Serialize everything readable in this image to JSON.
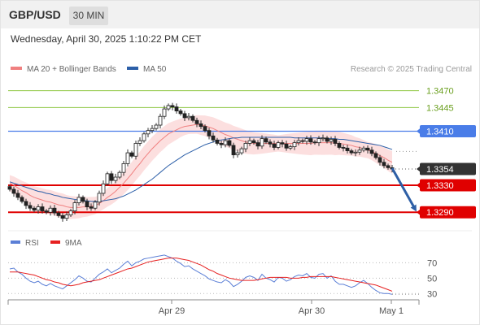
{
  "header": {
    "pair": "GBP/USD",
    "timeframe": "30 MIN",
    "datetime": "Wednesday, April 30, 2025 1:10:22 PM CET"
  },
  "legend": {
    "items": [
      {
        "label": "MA 20 + Bollinger Bands",
        "color": "#f08080"
      },
      {
        "label": "MA 50",
        "color": "#2c5fa8"
      }
    ],
    "research": "Research © 2025 Trading Central"
  },
  "rsi_legend": {
    "items": [
      {
        "label": "RSI",
        "color": "#5b7fd6"
      },
      {
        "label": "9MA",
        "color": "#e62020"
      }
    ]
  },
  "colors": {
    "resistance_green": "#8dc63f",
    "pivot_blue": "#4a7de8",
    "support_red": "#e00000",
    "last_price_bg": "#333333",
    "arrow": "#2e5fa6",
    "bollinger_fill": "#fcd9d9"
  },
  "chart_data": [
    {
      "type": "candlestick",
      "title": "GBP/USD",
      "x_ticks": [
        "Apr 29",
        "Apr 30",
        "May 1"
      ],
      "ylim": [
        1.3265,
        1.349
      ],
      "levels": [
        {
          "label": "1.3470",
          "value": 1.347,
          "kind": "resistance"
        },
        {
          "label": "1.3445",
          "value": 1.3445,
          "kind": "resistance"
        },
        {
          "label": "1.3410",
          "value": 1.341,
          "kind": "pivot"
        },
        {
          "label": "1.3354",
          "value": 1.3354,
          "kind": "last"
        },
        {
          "label": "1.3330",
          "value": 1.333,
          "kind": "support"
        },
        {
          "label": "1.3290",
          "value": 1.329,
          "kind": "support"
        }
      ],
      "close": [
        1.3324,
        1.3318,
        1.3312,
        1.3306,
        1.33,
        1.3296,
        1.3293,
        1.3298,
        1.3292,
        1.329,
        1.3296,
        1.3289,
        1.3285,
        1.3281,
        1.3286,
        1.3292,
        1.3304,
        1.3312,
        1.3306,
        1.3298,
        1.3296,
        1.3305,
        1.3318,
        1.3332,
        1.3347,
        1.3337,
        1.3342,
        1.3349,
        1.3362,
        1.3378,
        1.3373,
        1.3392,
        1.3396,
        1.3406,
        1.3411,
        1.3414,
        1.3419,
        1.3432,
        1.3443,
        1.3448,
        1.3446,
        1.344,
        1.3436,
        1.343,
        1.3432,
        1.3426,
        1.3421,
        1.3417,
        1.3411,
        1.3403,
        1.3397,
        1.3392,
        1.339,
        1.3396,
        1.3389,
        1.3375,
        1.3378,
        1.3384,
        1.3392,
        1.3396,
        1.3393,
        1.3388,
        1.3399,
        1.3394,
        1.3391,
        1.3386,
        1.3393,
        1.3391,
        1.3385,
        1.3387,
        1.3393,
        1.3396,
        1.3395,
        1.3399,
        1.3394,
        1.3393,
        1.3399,
        1.34,
        1.3395,
        1.3398,
        1.3392,
        1.3386,
        1.3385,
        1.3381,
        1.3378,
        1.3379,
        1.3382,
        1.3385,
        1.3382,
        1.3377,
        1.3371,
        1.3364,
        1.3359,
        1.3356,
        1.3354
      ],
      "ma20": [
        1.3333,
        1.333,
        1.3326,
        1.3322,
        1.3319,
        1.3315,
        1.3312,
        1.331,
        1.3308,
        1.3306,
        1.3305,
        1.3303,
        1.3301,
        1.33,
        1.3298,
        1.3297,
        1.3297,
        1.3297,
        1.3298,
        1.3298,
        1.3299,
        1.33,
        1.3303,
        1.3307,
        1.3312,
        1.3316,
        1.3321,
        1.3327,
        1.3333,
        1.334,
        1.3347,
        1.3355,
        1.3362,
        1.337,
        1.3377,
        1.3384,
        1.339,
        1.3396,
        1.3401,
        1.3406,
        1.3409,
        1.3412,
        1.3415,
        1.3417,
        1.3418,
        1.3419,
        1.342,
        1.3419,
        1.3418,
        1.3416,
        1.3414,
        1.3411,
        1.3408,
        1.3405,
        1.3403,
        1.34,
        1.3398,
        1.3396,
        1.3394,
        1.3393,
        1.3392,
        1.3392,
        1.3392,
        1.3392,
        1.3392,
        1.3392,
        1.3392,
        1.3392,
        1.3392,
        1.3392,
        1.3392,
        1.3392,
        1.3392,
        1.3392,
        1.3392,
        1.3393,
        1.3393,
        1.3393,
        1.3393,
        1.3393,
        1.3392,
        1.3392,
        1.3391,
        1.339,
        1.3389,
        1.3387,
        1.3386,
        1.3384,
        1.3382,
        1.338,
        1.3377,
        1.3374,
        1.3371,
        1.3367,
        1.3364
      ],
      "ma50": [
        1.3335,
        1.3333,
        1.3331,
        1.3329,
        1.3327,
        1.3325,
        1.3323,
        1.3321,
        1.332,
        1.3318,
        1.3317,
        1.3315,
        1.3314,
        1.3312,
        1.3311,
        1.331,
        1.3309,
        1.3308,
        1.3307,
        1.3307,
        1.3306,
        1.3306,
        1.3306,
        1.3307,
        1.3308,
        1.3309,
        1.331,
        1.3312,
        1.3314,
        1.3317,
        1.332,
        1.3323,
        1.3327,
        1.3331,
        1.3335,
        1.3339,
        1.3344,
        1.3349,
        1.3354,
        1.3359,
        1.3363,
        1.3367,
        1.3371,
        1.3375,
        1.3378,
        1.3381,
        1.3384,
        1.3387,
        1.339,
        1.3392,
        1.3394,
        1.3396,
        1.3397,
        1.3398,
        1.3399,
        1.34,
        1.34,
        1.3401,
        1.3401,
        1.3401,
        1.3401,
        1.3401,
        1.3401,
        1.3401,
        1.3401,
        1.3401,
        1.3401,
        1.3401,
        1.3401,
        1.3401,
        1.34,
        1.34,
        1.34,
        1.34,
        1.34,
        1.34,
        1.34,
        1.34,
        1.3399,
        1.3399,
        1.3399,
        1.3398,
        1.3398,
        1.3397,
        1.3396,
        1.3395,
        1.3394,
        1.3393,
        1.3392,
        1.3391,
        1.339,
        1.3389,
        1.3387,
        1.3385,
        1.3383
      ]
    },
    {
      "type": "line",
      "title": "RSI",
      "series_names": [
        "RSI",
        "9MA"
      ],
      "y_ticks": [
        70,
        50,
        30
      ],
      "ylim": [
        25,
        82
      ],
      "rsi": [
        62,
        63,
        58,
        55,
        50,
        46,
        44,
        46,
        42,
        40,
        43,
        40,
        38,
        36,
        40,
        44,
        48,
        53,
        50,
        46,
        45,
        50,
        55,
        58,
        62,
        57,
        60,
        63,
        68,
        72,
        66,
        70,
        72,
        75,
        76,
        77,
        78,
        79,
        80,
        78,
        76,
        72,
        69,
        65,
        66,
        62,
        59,
        56,
        53,
        49,
        47,
        45,
        44,
        48,
        45,
        39,
        42,
        46,
        51,
        53,
        51,
        47,
        55,
        50,
        48,
        45,
        51,
        50,
        46,
        48,
        52,
        54,
        53,
        56,
        51,
        50,
        55,
        56,
        50,
        53,
        46,
        42,
        42,
        40,
        38,
        40,
        44,
        47,
        43,
        38,
        34,
        31,
        30,
        30,
        29
      ],
      "ma9": [
        58,
        58,
        58,
        57,
        56,
        55,
        54,
        52,
        50,
        48,
        47,
        45,
        44,
        42,
        41,
        40,
        41,
        42,
        44,
        45,
        46,
        47,
        48,
        50,
        52,
        54,
        56,
        58,
        60,
        62,
        63,
        65,
        67,
        69,
        71,
        72,
        73,
        74,
        75,
        76,
        76,
        76,
        75,
        74,
        73,
        71,
        69,
        67,
        64,
        61,
        59,
        56,
        54,
        52,
        50,
        49,
        48,
        47,
        47,
        47,
        47,
        48,
        49,
        50,
        51,
        51,
        51,
        51,
        51,
        50,
        50,
        50,
        51,
        51,
        52,
        52,
        52,
        52,
        52,
        52,
        51,
        50,
        49,
        48,
        47,
        46,
        45,
        44,
        43,
        42,
        41,
        39,
        37,
        35,
        33
      ]
    }
  ]
}
